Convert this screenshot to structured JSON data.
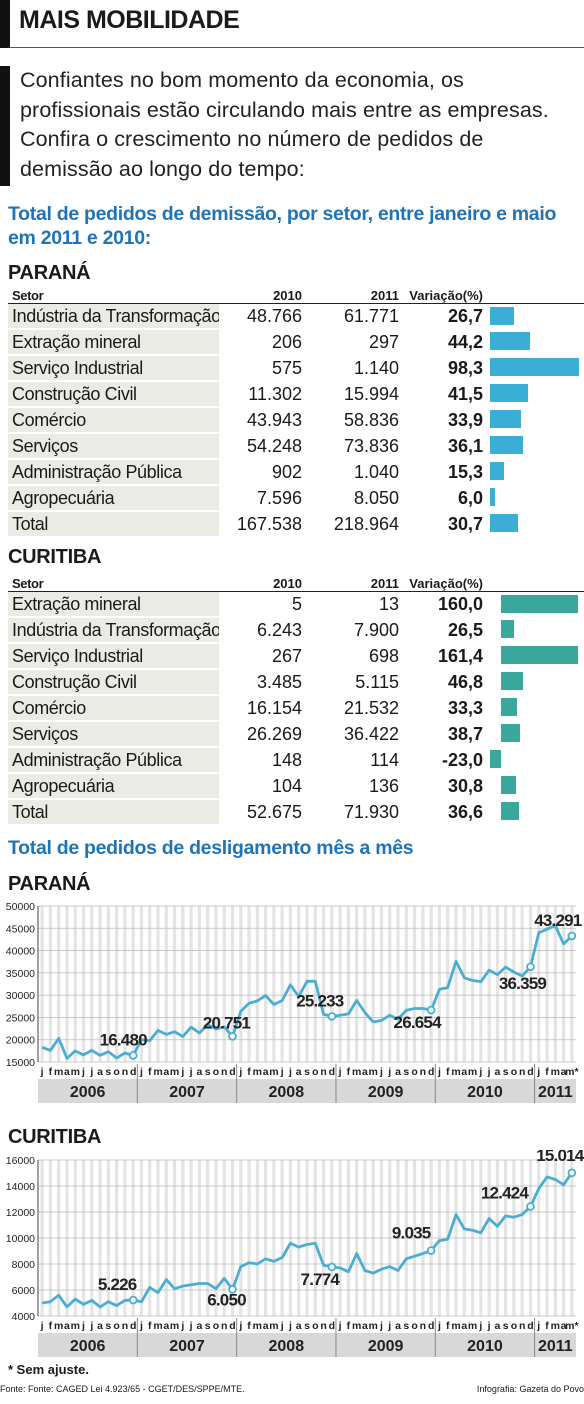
{
  "header": {
    "title": "MAIS MOBILIDADE"
  },
  "intro": "Confiantes no bom momento da economia, os profissionais estão circulando mais entre as empresas. Confira o crescimento no número de pedidos de demissão ao longo do tempo:",
  "section1_title": "Total de pedidos de demissão, por setor, entre janeiro e maio em 2011 e 2010:",
  "section2_title": "Total de pedidos de desligamento mês a mês",
  "colors": {
    "title_blue": "#1f74b8",
    "bar_parana": "#3aaed6",
    "bar_curitiba": "#3aa89a",
    "line": "#4aaed3"
  },
  "tables": [
    {
      "region": "PARANÁ",
      "headers": [
        "Setor",
        "2010",
        "2011",
        "Variação(%)"
      ],
      "rows": [
        {
          "setor": "Indústria da Transformação",
          "v2010": "48.766",
          "v2011": "61.771",
          "variacao": "26,7"
        },
        {
          "setor": "Extração mineral",
          "v2010": "206",
          "v2011": "297",
          "variacao": "44,2"
        },
        {
          "setor": "Serviço Industrial",
          "v2010": "575",
          "v2011": "1.140",
          "variacao": "98,3"
        },
        {
          "setor": "Construção Civil",
          "v2010": "11.302",
          "v2011": "15.994",
          "variacao": "41,5"
        },
        {
          "setor": "Comércio",
          "v2010": "43.943",
          "v2011": "58.836",
          "variacao": "33,9"
        },
        {
          "setor": "Serviços",
          "v2010": "54.248",
          "v2011": "73.836",
          "variacao": "36,1"
        },
        {
          "setor": "Administração Pública",
          "v2010": "902",
          "v2011": "1.040",
          "variacao": "15,3"
        },
        {
          "setor": "Agropecuária",
          "v2010": "7.596",
          "v2011": "8.050",
          "variacao": "6,0"
        },
        {
          "setor": "Total",
          "v2010": "167.538",
          "v2011": "218.964",
          "variacao": "30,7"
        }
      ]
    },
    {
      "region": "CURITIBA",
      "headers": [
        "Setor",
        "2010",
        "2011",
        "Variação(%)"
      ],
      "rows": [
        {
          "setor": "Extração mineral",
          "v2010": "5",
          "v2011": "13",
          "variacao": "160,0"
        },
        {
          "setor": "Indústria da Transformação",
          "v2010": "6.243",
          "v2011": "7.900",
          "variacao": "26,5"
        },
        {
          "setor": "Serviço Industrial",
          "v2010": "267",
          "v2011": "698",
          "variacao": "161,4"
        },
        {
          "setor": "Construção Civil",
          "v2010": "3.485",
          "v2011": "5.115",
          "variacao": "46,8"
        },
        {
          "setor": "Comércio",
          "v2010": "16.154",
          "v2011": "21.532",
          "variacao": "33,3"
        },
        {
          "setor": "Serviços",
          "v2010": "26.269",
          "v2011": "36.422",
          "variacao": "38,7"
        },
        {
          "setor": "Administração Pública",
          "v2010": "148",
          "v2011": "114",
          "variacao": "-23,0"
        },
        {
          "setor": "Agropecuária",
          "v2010": "104",
          "v2011": "136",
          "variacao": "30,8"
        },
        {
          "setor": "Total",
          "v2010": "52.675",
          "v2011": "71.930",
          "variacao": "36,6"
        }
      ]
    }
  ],
  "chart_data": [
    {
      "type": "bar",
      "title": "PARANÁ",
      "orientation": "horizontal",
      "categories": [
        "Indústria da Transformação",
        "Extração mineral",
        "Serviço Industrial",
        "Construção Civil",
        "Comércio",
        "Serviços",
        "Administração Pública",
        "Agropecuária",
        "Total"
      ],
      "values": [
        26.7,
        44.2,
        98.3,
        41.5,
        33.9,
        36.1,
        15.3,
        6.0,
        30.7
      ]
    },
    {
      "type": "bar",
      "title": "CURITIBA",
      "orientation": "horizontal",
      "categories": [
        "Extração mineral",
        "Indústria da Transformação",
        "Serviço Industrial",
        "Construção Civil",
        "Comércio",
        "Serviços",
        "Administração Pública",
        "Agropecuária",
        "Total"
      ],
      "values": [
        160.0,
        26.5,
        161.4,
        46.8,
        33.3,
        38.7,
        -23.0,
        30.8,
        36.6
      ]
    },
    {
      "type": "line",
      "title": "PARANÁ",
      "yticks": [
        "50000",
        "45000",
        "40000",
        "35000",
        "30000",
        "25000",
        "20000",
        "15000"
      ],
      "ylim": [
        15000,
        50000
      ],
      "grid": true,
      "months": [
        "j",
        "f",
        "m",
        "a",
        "m",
        "j",
        "j",
        "a",
        "s",
        "o",
        "n",
        "d"
      ],
      "months_2011": [
        "j",
        "f",
        "m",
        "a",
        "m*"
      ],
      "years": [
        "2006",
        "2007",
        "2008",
        "2009",
        "2010",
        "2011"
      ],
      "values": [
        18300,
        17600,
        20300,
        15800,
        17500,
        16600,
        17600,
        16500,
        17300,
        15900,
        17000,
        16480,
        20000,
        19800,
        22100,
        21200,
        21800,
        20700,
        22800,
        21500,
        23400,
        22400,
        22900,
        20751,
        26400,
        28200,
        28700,
        29900,
        27900,
        28800,
        32300,
        29700,
        33100,
        33100,
        25700,
        25233,
        25500,
        25800,
        28800,
        26100,
        24000,
        24300,
        25500,
        24600,
        26600,
        27000,
        27000,
        26654,
        31300,
        31700,
        37600,
        33900,
        33300,
        33000,
        35600,
        34600,
        36300,
        35200,
        34300,
        36359,
        44000,
        44800,
        45600,
        41500,
        43291
      ],
      "annotations": [
        {
          "label": "16.480",
          "value": 16480
        },
        {
          "label": "20.751",
          "value": 20751
        },
        {
          "label": "25.233",
          "value": 25233
        },
        {
          "label": "26.654",
          "value": 26654
        },
        {
          "label": "36.359",
          "value": 36359
        },
        {
          "label": "43.291",
          "value": 43291
        }
      ]
    },
    {
      "type": "line",
      "title": "CURITIBA",
      "yticks": [
        "16000",
        "14000",
        "12000",
        "10000",
        "8000",
        "6000",
        "4000"
      ],
      "ylim": [
        4000,
        16000
      ],
      "grid": true,
      "months": [
        "j",
        "f",
        "m",
        "a",
        "m",
        "j",
        "j",
        "a",
        "s",
        "o",
        "n",
        "d"
      ],
      "months_2011": [
        "j",
        "f",
        "m",
        "a",
        "m*"
      ],
      "years": [
        "2006",
        "2007",
        "2008",
        "2009",
        "2010",
        "2011"
      ],
      "values": [
        5000,
        5100,
        5600,
        4700,
        5300,
        4900,
        5200,
        4700,
        5100,
        4800,
        5200,
        5226,
        5100,
        6200,
        5800,
        6800,
        6100,
        6300,
        6400,
        6500,
        6500,
        6100,
        6900,
        6050,
        7800,
        8100,
        8000,
        8400,
        8200,
        8500,
        9600,
        9300,
        9500,
        9600,
        7900,
        7774,
        7700,
        7400,
        8800,
        7500,
        7300,
        7600,
        7800,
        7500,
        8400,
        8600,
        8800,
        9035,
        9800,
        9900,
        11800,
        10700,
        10600,
        10400,
        11500,
        10900,
        11700,
        11600,
        11800,
        12424,
        13800,
        14700,
        14500,
        14100,
        15014
      ],
      "annotations": [
        {
          "label": "5.226",
          "value": 5226
        },
        {
          "label": "6.050",
          "value": 6050
        },
        {
          "label": "7.774",
          "value": 7774
        },
        {
          "label": "9.035",
          "value": 9035
        },
        {
          "label": "12.424",
          "value": 12424
        },
        {
          "label": "15.014",
          "value": 15014
        }
      ]
    }
  ],
  "footer": {
    "note": "* Sem ajuste.",
    "source": "Fonte: Fonte: CAGED Lei 4.923/65 - CGET/DES/SPPE/MTE.",
    "credit": "Infografia: Gazeta do Povo"
  }
}
